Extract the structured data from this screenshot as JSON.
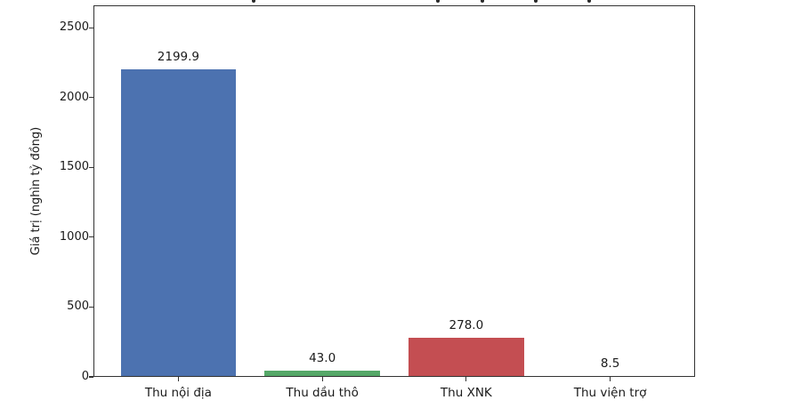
{
  "figure": {
    "background": "#ffffff",
    "title_clipped": true
  },
  "chart_data": {
    "type": "bar",
    "title": "",
    "title_visible": false,
    "categories": [
      "Thu nội địa",
      "Thu dầu thô",
      "Thu XNK",
      "Thu viện trợ"
    ],
    "values": [
      2199.9,
      43.0,
      278.0,
      8.5
    ],
    "value_labels": [
      "2199.9",
      "43.0",
      "278.0",
      "8.5"
    ],
    "xlabel": "",
    "ylabel": "Giá trị (nghìn tỷ đồng)",
    "yticks": [
      0,
      500,
      1000,
      1500,
      2000,
      2500
    ],
    "ytick_labels": [
      "0",
      "500",
      "1000",
      "1500",
      "2000",
      "2500"
    ],
    "ylim": [
      0,
      2660
    ],
    "bar_width_fraction": 0.8,
    "bar_colors": [
      "#4C72B0",
      "#55A868",
      "#C44E52",
      "#8172B2"
    ],
    "grid": false,
    "legend": null,
    "spine_color": "#333333",
    "text_color": "#1a1a1a",
    "clipped_title_fragments_x": [
      283,
      490,
      540,
      600,
      660
    ]
  }
}
